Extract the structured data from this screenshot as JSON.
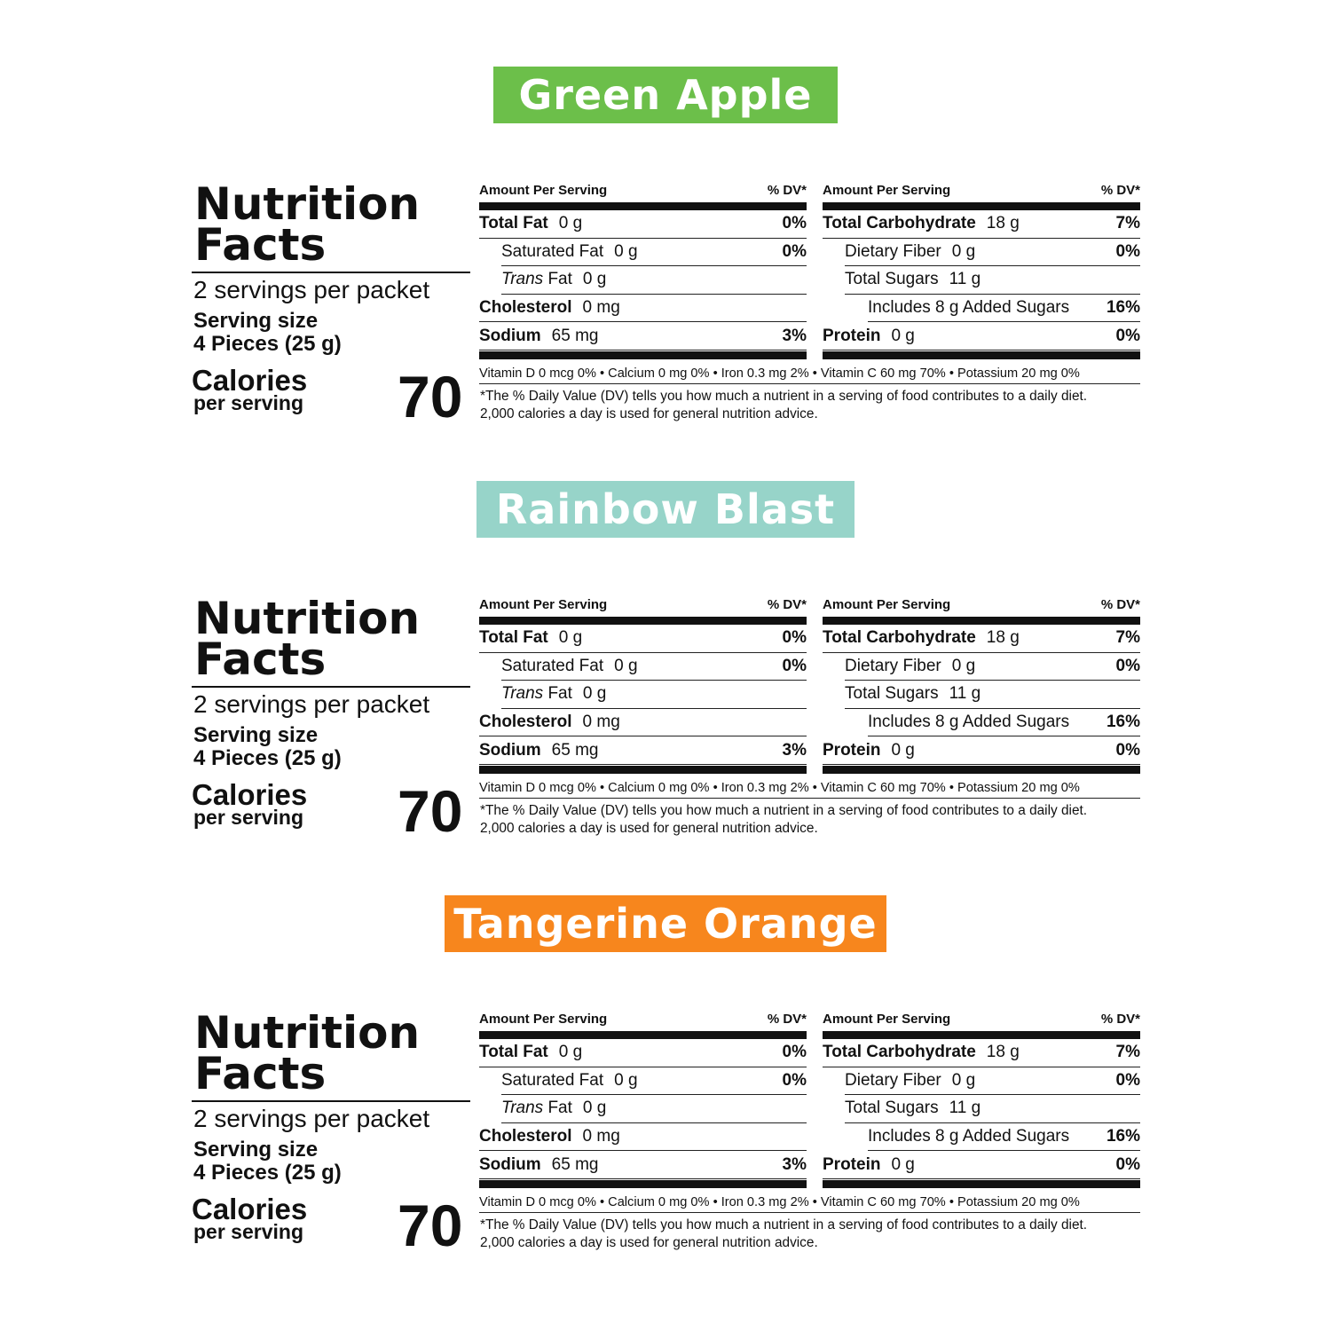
{
  "panels": [
    {
      "flavor": "Green Apple",
      "color": "#6cbf4a"
    },
    {
      "flavor": "Rainbow Blast",
      "color": "#97d4c9"
    },
    {
      "flavor": "Tangerine Orange",
      "color": "#f7861d"
    }
  ],
  "label": {
    "title_line1": "Nutrition",
    "title_line2": "Facts",
    "servings": "2 servings per packet",
    "serving_size_label": "Serving size",
    "serving_size_value": "4 Pieces (25 g)",
    "calories_label": "Calories",
    "calories_sub": "per serving",
    "calories_value": "70",
    "amount_header": "Amount Per Serving",
    "dv_header": "% DV*",
    "left_rows": [
      {
        "name": "Total Fat",
        "amount": "0 g",
        "dv": "0%",
        "bold": true,
        "indent": 0
      },
      {
        "name": "Saturated Fat",
        "amount": "0 g",
        "dv": "0%",
        "bold": false,
        "indent": 1
      },
      {
        "name": "Trans Fat",
        "amount": "0 g",
        "dv": "",
        "bold": false,
        "indent": 1,
        "italic_prefix": "Trans"
      },
      {
        "name": "Cholesterol",
        "amount": "0 mg",
        "dv": "",
        "bold": true,
        "indent": 0
      },
      {
        "name": "Sodium",
        "amount": "65 mg",
        "dv": "3%",
        "bold": true,
        "indent": 0
      }
    ],
    "right_rows": [
      {
        "name": "Total Carbohydrate",
        "amount": "18 g",
        "dv": "7%",
        "bold": true,
        "indent": 0
      },
      {
        "name": "Dietary Fiber",
        "amount": "0 g",
        "dv": "0%",
        "bold": false,
        "indent": 1
      },
      {
        "name": "Total Sugars",
        "amount": "11 g",
        "dv": "",
        "bold": false,
        "indent": 1
      },
      {
        "name": "Includes 8 g Added Sugars",
        "amount": "",
        "dv": "16%",
        "bold": false,
        "indent": 2
      },
      {
        "name": "Protein",
        "amount": "0 g",
        "dv": "0%",
        "bold": true,
        "indent": 0
      }
    ],
    "vitamins": "Vitamin D 0 mcg  0% • Calcium 0 mg  0% • Iron 0.3 mg  2% • Vitamin C 60 mg 70% • Potassium 20 mg  0%",
    "footnote_1": "*The % Daily Value (DV) tells you how much a nutrient in a serving of food contributes to a daily diet.",
    "footnote_2": "2,000 calories a day is used for general nutrition advice."
  }
}
